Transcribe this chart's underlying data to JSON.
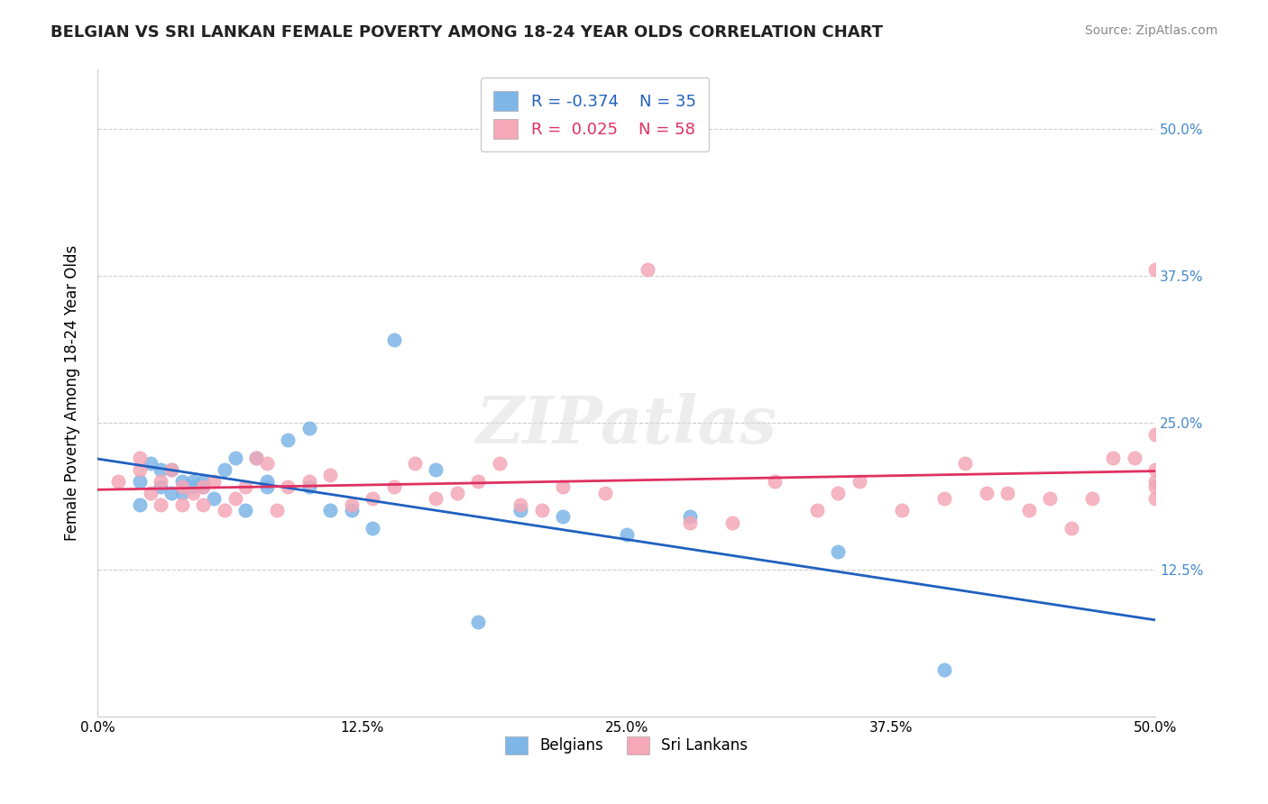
{
  "title": "BELGIAN VS SRI LANKAN FEMALE POVERTY AMONG 18-24 YEAR OLDS CORRELATION CHART",
  "source": "Source: ZipAtlas.com",
  "ylabel": "Female Poverty Among 18-24 Year Olds",
  "xlabel": "",
  "xlim": [
    0.0,
    0.5
  ],
  "ylim": [
    0.0,
    0.55
  ],
  "ytick_labels": [
    "",
    "12.5%",
    "25.0%",
    "37.5%",
    "50.0%"
  ],
  "ytick_values": [
    0.0,
    0.125,
    0.25,
    0.375,
    0.5
  ],
  "xtick_labels": [
    "0.0%",
    "12.5%",
    "25.0%",
    "37.5%",
    "50.0%"
  ],
  "xtick_values": [
    0.0,
    0.125,
    0.25,
    0.375,
    0.5
  ],
  "belgians_R": -0.374,
  "belgians_N": 35,
  "srilankans_R": 0.025,
  "srilankans_N": 58,
  "belgian_color": "#7EB6E8",
  "srilankan_color": "#F4A8B8",
  "belgian_line_color": "#2060C0",
  "srilankan_line_color": "#E03060",
  "watermark": "ZIPatlas",
  "belgians_x": [
    0.02,
    0.02,
    0.025,
    0.03,
    0.03,
    0.035,
    0.035,
    0.04,
    0.04,
    0.045,
    0.045,
    0.05,
    0.05,
    0.055,
    0.06,
    0.065,
    0.07,
    0.075,
    0.08,
    0.08,
    0.09,
    0.1,
    0.1,
    0.11,
    0.12,
    0.13,
    0.14,
    0.16,
    0.18,
    0.2,
    0.22,
    0.25,
    0.28,
    0.35,
    0.4
  ],
  "belgians_y": [
    0.2,
    0.18,
    0.215,
    0.195,
    0.21,
    0.19,
    0.21,
    0.19,
    0.2,
    0.195,
    0.2,
    0.2,
    0.195,
    0.185,
    0.21,
    0.22,
    0.175,
    0.22,
    0.195,
    0.2,
    0.235,
    0.195,
    0.245,
    0.175,
    0.175,
    0.16,
    0.32,
    0.21,
    0.08,
    0.175,
    0.17,
    0.155,
    0.17,
    0.14,
    0.04
  ],
  "srilankans_x": [
    0.01,
    0.02,
    0.02,
    0.025,
    0.03,
    0.03,
    0.035,
    0.04,
    0.04,
    0.045,
    0.05,
    0.05,
    0.055,
    0.06,
    0.065,
    0.07,
    0.075,
    0.08,
    0.085,
    0.09,
    0.1,
    0.11,
    0.12,
    0.13,
    0.14,
    0.15,
    0.16,
    0.17,
    0.18,
    0.19,
    0.2,
    0.21,
    0.22,
    0.24,
    0.26,
    0.28,
    0.3,
    0.32,
    0.34,
    0.35,
    0.36,
    0.38,
    0.4,
    0.41,
    0.42,
    0.43,
    0.44,
    0.45,
    0.46,
    0.47,
    0.48,
    0.49,
    0.5,
    0.5,
    0.5,
    0.5,
    0.5,
    0.5
  ],
  "srilankans_y": [
    0.2,
    0.21,
    0.22,
    0.19,
    0.2,
    0.18,
    0.21,
    0.195,
    0.18,
    0.19,
    0.195,
    0.18,
    0.2,
    0.175,
    0.185,
    0.195,
    0.22,
    0.215,
    0.175,
    0.195,
    0.2,
    0.205,
    0.18,
    0.185,
    0.195,
    0.215,
    0.185,
    0.19,
    0.2,
    0.215,
    0.18,
    0.175,
    0.195,
    0.19,
    0.38,
    0.165,
    0.165,
    0.2,
    0.175,
    0.19,
    0.2,
    0.175,
    0.185,
    0.215,
    0.19,
    0.19,
    0.175,
    0.185,
    0.16,
    0.185,
    0.22,
    0.22,
    0.24,
    0.195,
    0.2,
    0.38,
    0.185,
    0.21
  ]
}
